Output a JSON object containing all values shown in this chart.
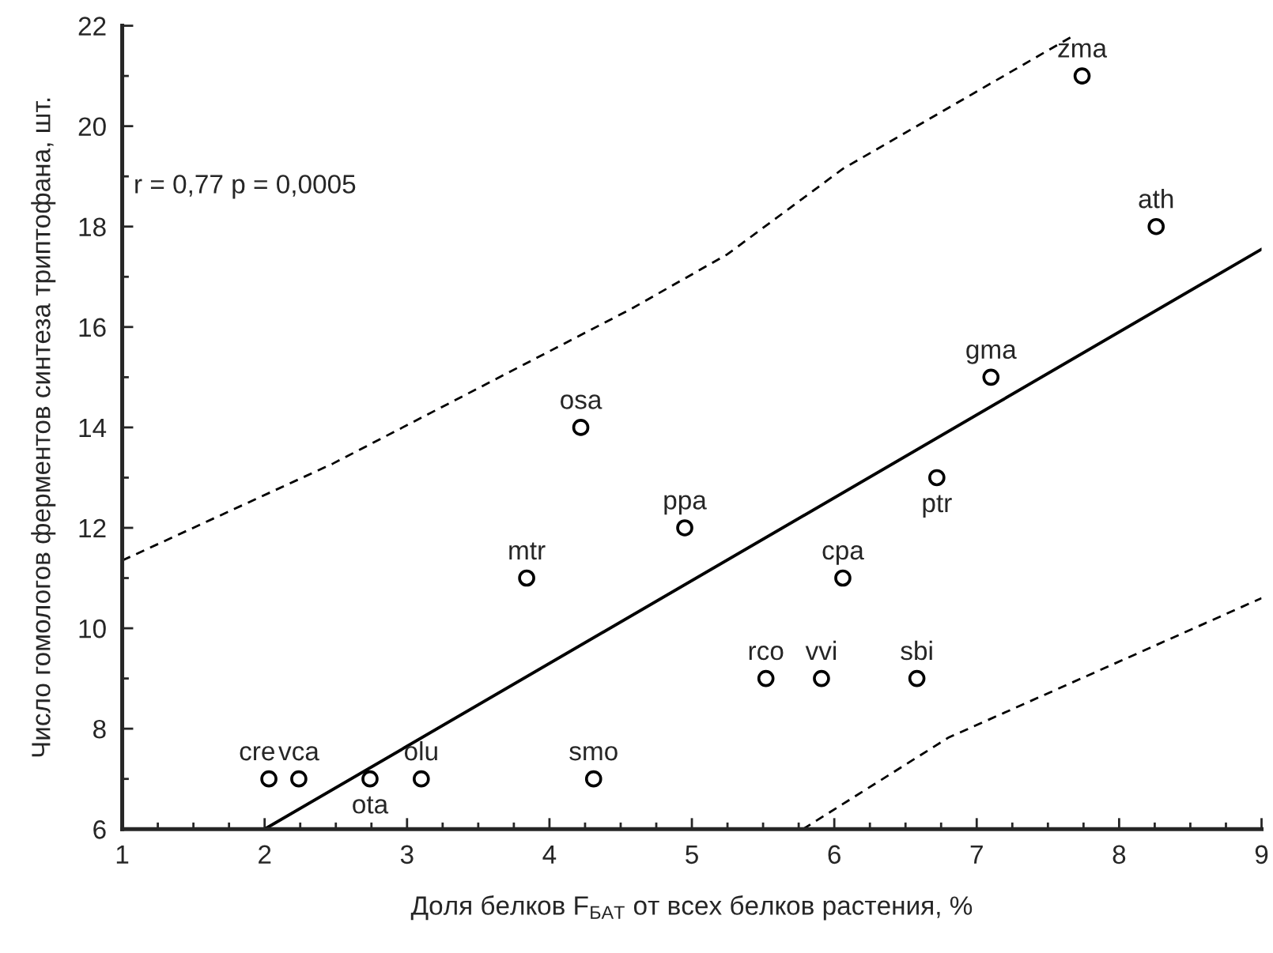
{
  "chart_data": {
    "type": "scatter",
    "xlabel": "Доля белков F$_{БАТ}$ от всех белков растения, %",
    "ylabel": "Число гомологов ферментов синтеза триптофана, шт.",
    "xlim": [
      1,
      9
    ],
    "ylim": [
      6,
      22
    ],
    "xticks": [
      1,
      {
        "value": 1.25,
        "label": null
      },
      {
        "value": 1.5,
        "label": null
      },
      {
        "value": 1.75,
        "label": null
      },
      2,
      {
        "value": 2.25,
        "label": null
      },
      {
        "value": 2.5,
        "label": null
      },
      {
        "value": 2.75,
        "label": null
      },
      3,
      {
        "value": 3.25,
        "label": null
      },
      {
        "value": 3.5,
        "label": null
      },
      {
        "value": 3.75,
        "label": null
      },
      4,
      {
        "value": 4.25,
        "label": null
      },
      {
        "value": 4.5,
        "label": null
      },
      {
        "value": 4.75,
        "label": null
      },
      5,
      {
        "value": 5.25,
        "label": null
      },
      {
        "value": 5.5,
        "label": null
      },
      {
        "value": 5.75,
        "label": null
      },
      6,
      {
        "value": 6.25,
        "label": null
      },
      {
        "value": 6.5,
        "label": null
      },
      {
        "value": 6.75,
        "label": null
      },
      7,
      {
        "value": 7.25,
        "label": null
      },
      {
        "value": 7.5,
        "label": null
      },
      {
        "value": 7.75,
        "label": null
      },
      8,
      {
        "value": 8.25,
        "label": null
      },
      {
        "value": 8.5,
        "label": null
      },
      {
        "value": 8.75,
        "label": null
      },
      9
    ],
    "yticks": [
      6,
      {
        "value": 7,
        "label": null
      },
      8,
      {
        "value": 9,
        "label": null
      },
      10,
      {
        "value": 11,
        "label": null
      },
      12,
      {
        "value": 13,
        "label": null
      },
      14,
      {
        "value": 15,
        "label": null
      },
      16,
      {
        "value": 17,
        "label": null
      },
      18,
      {
        "value": 19,
        "label": null
      },
      20,
      {
        "value": 21,
        "label": null
      },
      22
    ],
    "grid": false,
    "series": [
      {
        "color": "#000000",
        "marker": "circle",
        "x": [
          2.03,
          2.24,
          2.74,
          3.1,
          4.31,
          3.84,
          4.22,
          4.95,
          5.52,
          5.91,
          6.06,
          6.58,
          6.72,
          7.1,
          7.74,
          8.26
        ],
        "values": [
          7,
          7,
          7,
          7,
          7,
          11,
          14,
          12,
          9,
          9,
          11,
          9,
          13,
          15,
          21,
          18
        ]
      },
      {
        "type": "line",
        "color": "#000000",
        "line_style": "solid",
        "x": [
          2.0,
          9
        ],
        "values": [
          6,
          17.55
        ]
      },
      {
        "type": "line",
        "color": "#000000",
        "line_style": "dashed",
        "x": [
          1,
          2.48,
          4.58,
          5.25,
          6.06,
          7.66
        ],
        "values": [
          11.35,
          13.28,
          16.37,
          17.45,
          19.15,
          21.77
        ]
      },
      {
        "type": "line",
        "color": "#000000",
        "line_style": "dashed",
        "x": [
          5.78,
          6.8,
          9
        ],
        "values": [
          6,
          7.82,
          10.6
        ]
      }
    ],
    "annotations": [
      "r = 0,77 p = 0,0005",
      {
        "text": "cre",
        "x": 2.03,
        "y": 7
      },
      {
        "text": "vca",
        "x": 2.24,
        "y": 7
      },
      {
        "text": "ota",
        "x": 2.74,
        "y": 7
      },
      {
        "text": "olu",
        "x": 3.1,
        "y": 7
      },
      {
        "text": "smo",
        "x": 4.31,
        "y": 7
      },
      {
        "text": "mtr",
        "x": 3.84,
        "y": 11
      },
      {
        "text": "osa",
        "x": 4.22,
        "y": 14
      },
      {
        "text": "ppa",
        "x": 4.95,
        "y": 12
      },
      {
        "text": "rco",
        "x": 5.52,
        "y": 9
      },
      {
        "text": "vvi",
        "x": 5.91,
        "y": 9
      },
      {
        "text": "cpa",
        "x": 6.06,
        "y": 11
      },
      {
        "text": "sbi",
        "x": 6.58,
        "y": 9
      },
      {
        "text": "ptr",
        "x": 6.72,
        "y": 13
      },
      {
        "text": "gma",
        "x": 7.1,
        "y": 15
      },
      {
        "text": "zma",
        "x": 7.74,
        "y": 21
      },
      {
        "text": "ath",
        "x": 8.26,
        "y": 18
      }
    ]
  }
}
